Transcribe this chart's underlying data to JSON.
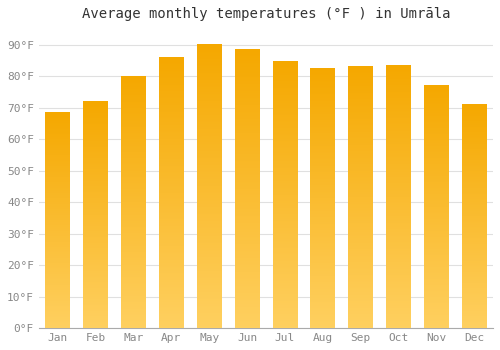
{
  "title": "Average monthly temperatures (°F ) in Umrāla",
  "months": [
    "Jan",
    "Feb",
    "Mar",
    "Apr",
    "May",
    "Jun",
    "Jul",
    "Aug",
    "Sep",
    "Oct",
    "Nov",
    "Dec"
  ],
  "values": [
    68.5,
    72,
    80,
    86,
    90,
    88.5,
    84.5,
    82.5,
    83,
    83.5,
    77,
    71
  ],
  "bar_color_top": "#F5A800",
  "bar_color_bottom": "#FFD060",
  "ylim": [
    0,
    95
  ],
  "yticks": [
    0,
    10,
    20,
    30,
    40,
    50,
    60,
    70,
    80,
    90
  ],
  "ytick_labels": [
    "0°F",
    "10°F",
    "20°F",
    "30°F",
    "40°F",
    "50°F",
    "60°F",
    "70°F",
    "80°F",
    "90°F"
  ],
  "background_color": "#ffffff",
  "grid_color": "#e0e0e0",
  "title_fontsize": 10,
  "tick_fontsize": 8,
  "font_family": "monospace"
}
